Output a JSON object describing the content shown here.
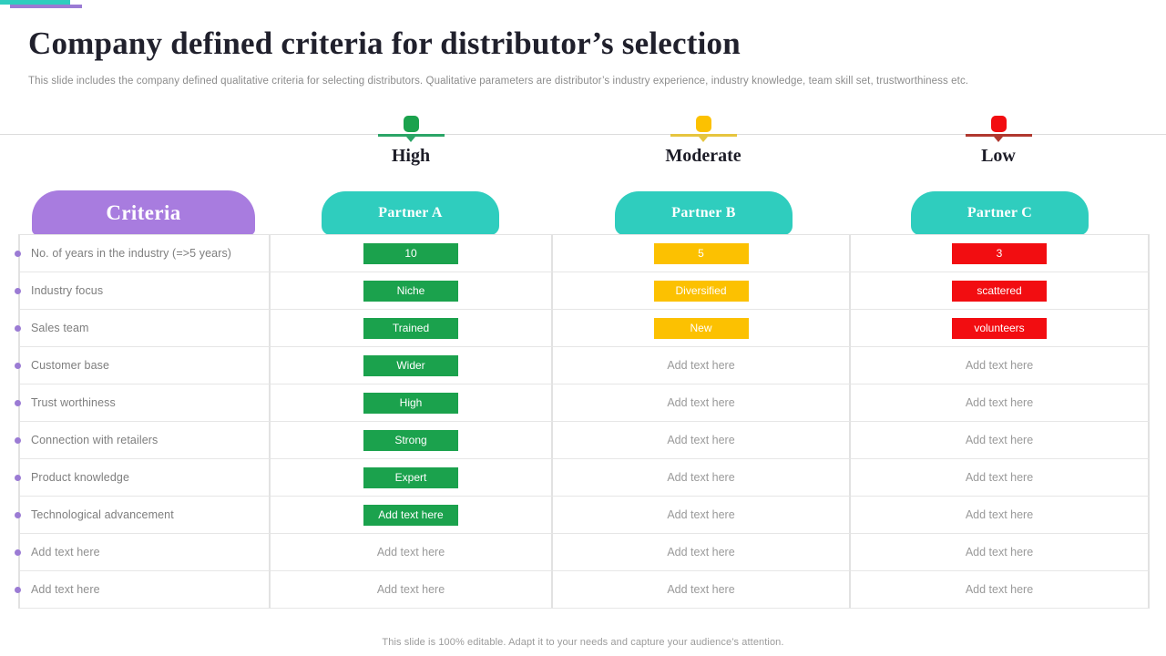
{
  "slide": {
    "title": "Company defined criteria for distributor’s selection",
    "subtitle": "This slide includes the company defined qualitative criteria for selecting distributors. Qualitative parameters are distributor’s industry experience, industry knowledge, team skill set, trustworthiness etc.",
    "footer_note": "This slide is 100% editable. Adapt it to your needs and capture your audience’s attention."
  },
  "legend": {
    "items": [
      {
        "label": "High",
        "level": "high"
      },
      {
        "label": "Moderate",
        "level": "moderate"
      },
      {
        "label": "Low",
        "level": "low"
      }
    ]
  },
  "table": {
    "criteria_header": "Criteria",
    "partner_headers": [
      {
        "label": "Partner A"
      },
      {
        "label": "Partner B"
      },
      {
        "label": "Partner C"
      }
    ],
    "placeholder": "Add text here",
    "rows": [
      {
        "criteria": "No. of years in the industry (=>5 years)",
        "cells": [
          {
            "text": "10",
            "level": "high"
          },
          {
            "text": "5",
            "level": "moderate"
          },
          {
            "text": "3",
            "level": "low"
          }
        ]
      },
      {
        "criteria": "Industry focus",
        "cells": [
          {
            "text": "Niche",
            "level": "high"
          },
          {
            "text": "Diversified",
            "level": "moderate"
          },
          {
            "text": "scattered",
            "level": "low"
          }
        ]
      },
      {
        "criteria": "Sales team",
        "cells": [
          {
            "text": "Trained",
            "level": "high"
          },
          {
            "text": "New",
            "level": "moderate"
          },
          {
            "text": "volunteers",
            "level": "low"
          }
        ]
      },
      {
        "criteria": "Customer base",
        "cells": [
          {
            "text": "Wider",
            "level": "high"
          },
          {
            "text": "Add text here",
            "level": "none"
          },
          {
            "text": "Add text here",
            "level": "none"
          }
        ]
      },
      {
        "criteria": "Trust worthiness",
        "cells": [
          {
            "text": "High",
            "level": "high"
          },
          {
            "text": "Add text here",
            "level": "none"
          },
          {
            "text": "Add text here",
            "level": "none"
          }
        ]
      },
      {
        "criteria": "Connection with retailers",
        "cells": [
          {
            "text": "Strong",
            "level": "high"
          },
          {
            "text": "Add text here",
            "level": "none"
          },
          {
            "text": "Add text here",
            "level": "none"
          }
        ]
      },
      {
        "criteria": "Product knowledge",
        "cells": [
          {
            "text": "Expert",
            "level": "high"
          },
          {
            "text": "Add text here",
            "level": "none"
          },
          {
            "text": "Add text here",
            "level": "none"
          }
        ]
      },
      {
        "criteria": "Technological advancement",
        "cells": [
          {
            "text": "Add text here",
            "level": "high"
          },
          {
            "text": "Add text here",
            "level": "none"
          },
          {
            "text": "Add text here",
            "level": "none"
          }
        ]
      },
      {
        "criteria": "Add text here",
        "cells": [
          {
            "text": "Add text here",
            "level": "none"
          },
          {
            "text": "Add text here",
            "level": "none"
          },
          {
            "text": "Add text here",
            "level": "none"
          }
        ]
      },
      {
        "criteria": "Add text here",
        "cells": [
          {
            "text": "Add text here",
            "level": "none"
          },
          {
            "text": "Add text here",
            "level": "none"
          },
          {
            "text": "Add text here",
            "level": "none"
          }
        ]
      }
    ]
  },
  "colors": {
    "high": "#1BA24D",
    "moderate": "#FCC101",
    "low": "#F20D11",
    "high_line": "#2BA567",
    "moderate_line": "#E6C53F",
    "low_line": "#B0382F",
    "header_teal": "#2FCDBE",
    "header_purple": "#A87CDF",
    "bullet_purple": "#9B7BD4"
  }
}
